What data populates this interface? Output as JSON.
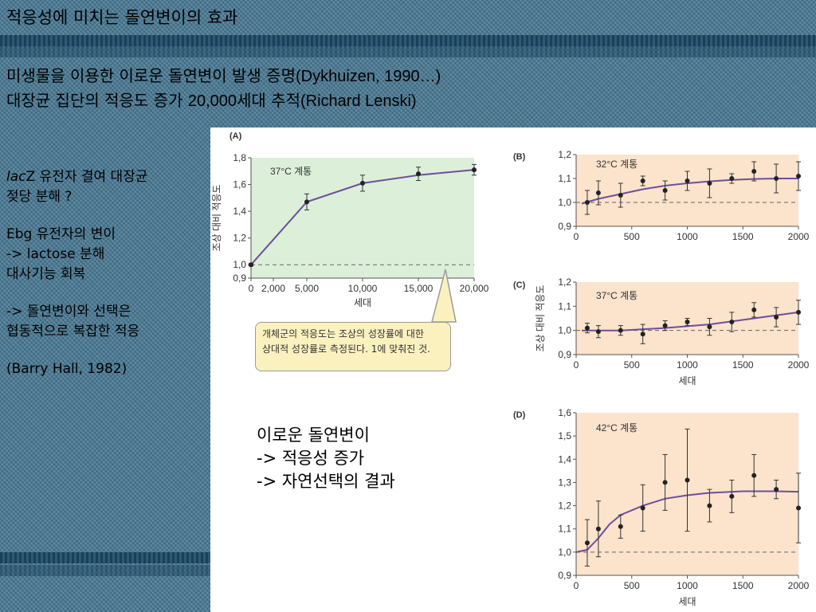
{
  "slide": {
    "title": "적응성에 미치는 돌연변이의 효과",
    "subtitle": [
      {
        "ko": "미생물을 이용한 이로운 돌연변이 발생 증명",
        "en": "(Dykhuizen, 1990…)"
      },
      {
        "ko": "대장균 집단의 적응도 증가 ",
        "en": "20,000",
        "ko2": "세대 추적",
        "en2": "(Richard Lenski)"
      }
    ],
    "left": {
      "p1_italic": "lac",
      "p1_line1_rest": "Z 유전자 결여 대장균",
      "p1_line2": "젖당 분해 ?",
      "p2_line1": "Ebg 유전자의 변이",
      "p2_line2": "-> lactose 분해",
      "p2_line3": "대사기능 회복",
      "p3_line1": "-> 돌연변이와 선택은",
      "p3_line2": "협동적으로 복잡한 적응",
      "p4": "(Barry Hall, 1982)"
    },
    "callout_line1": "개체군의 적응도는 조상의 성장률에 대한",
    "callout_line2": "상대적 성장률로 측정된다. 1에 맞춰진 것.",
    "note_line1": "이로운 돌연변이",
    "note_line2": "-> 적응성 증가",
    "note_line3": "-> 자연선택의 결과"
  },
  "colors": {
    "panelA_bg": "#dcefd9",
    "panelBCD_bg": "#fbe3cc",
    "curve": "#6e4f9a",
    "background": "#4d7e99"
  },
  "chart_data": [
    {
      "type": "line",
      "panel": "(A)",
      "label": "37°C 계통",
      "xlabel": "세대",
      "ylabel": "조상 대비 적응도",
      "xlim": [
        0,
        20000
      ],
      "ylim": [
        0.9,
        1.8
      ],
      "xticks": [
        "0",
        "2,000",
        "5,000",
        "10,000",
        "15,000",
        "20,000"
      ],
      "xtick_values": [
        0,
        2000,
        5000,
        10000,
        15000,
        20000
      ],
      "yticks": [
        "0,9",
        "1,0",
        "1,2",
        "1,4",
        "1,6",
        "1,8"
      ],
      "ytick_values": [
        0.9,
        1.0,
        1.2,
        1.4,
        1.6,
        1.8
      ],
      "points": [
        {
          "x": 0,
          "y": 1.0,
          "err": 0.01
        },
        {
          "x": 5000,
          "y": 1.47,
          "err": 0.06
        },
        {
          "x": 10000,
          "y": 1.61,
          "err": 0.06
        },
        {
          "x": 15000,
          "y": 1.68,
          "err": 0.05
        },
        {
          "x": 20000,
          "y": 1.71,
          "err": 0.04
        }
      ],
      "curve": [
        [
          0,
          1.0
        ],
        [
          5000,
          1.47
        ],
        [
          10000,
          1.61
        ],
        [
          15000,
          1.67
        ],
        [
          20000,
          1.71
        ]
      ],
      "baseline": 1.0
    },
    {
      "type": "line",
      "panel": "(B)",
      "label": "32°C 계통",
      "xlabel": "",
      "ylabel": "",
      "xlim": [
        0,
        2000
      ],
      "ylim": [
        0.9,
        1.2
      ],
      "xticks": [
        "0",
        "500",
        "1000",
        "1500",
        "2000"
      ],
      "xtick_values": [
        0,
        500,
        1000,
        1500,
        2000
      ],
      "yticks": [
        "0,9",
        "1,0",
        "1,1",
        "1,2"
      ],
      "ytick_values": [
        0.9,
        1.0,
        1.1,
        1.2
      ],
      "points": [
        {
          "x": 100,
          "y": 1.0,
          "err": 0.05
        },
        {
          "x": 200,
          "y": 1.04,
          "err": 0.05
        },
        {
          "x": 400,
          "y": 1.03,
          "err": 0.05
        },
        {
          "x": 600,
          "y": 1.09,
          "err": 0.02
        },
        {
          "x": 800,
          "y": 1.05,
          "err": 0.04
        },
        {
          "x": 1000,
          "y": 1.09,
          "err": 0.04
        },
        {
          "x": 1200,
          "y": 1.08,
          "err": 0.06
        },
        {
          "x": 1400,
          "y": 1.1,
          "err": 0.02
        },
        {
          "x": 1600,
          "y": 1.13,
          "err": 0.04
        },
        {
          "x": 1800,
          "y": 1.1,
          "err": 0.06
        },
        {
          "x": 2000,
          "y": 1.11,
          "err": 0.06
        }
      ],
      "curve": [
        [
          50,
          0.995
        ],
        [
          200,
          1.015
        ],
        [
          400,
          1.035
        ],
        [
          600,
          1.055
        ],
        [
          800,
          1.07
        ],
        [
          1000,
          1.08
        ],
        [
          1200,
          1.088
        ],
        [
          1400,
          1.094
        ],
        [
          1600,
          1.098
        ],
        [
          1800,
          1.1
        ],
        [
          2000,
          1.1
        ]
      ],
      "baseline": 1.0
    },
    {
      "type": "line",
      "panel": "(C)",
      "label": "37°C 계통",
      "xlabel": "세대",
      "ylabel": "조상 대비 적응도",
      "xlim": [
        0,
        2000
      ],
      "ylim": [
        0.9,
        1.2
      ],
      "xticks": [
        "0",
        "500",
        "1000",
        "1500",
        "2000"
      ],
      "xtick_values": [
        0,
        500,
        1000,
        1500,
        2000
      ],
      "yticks": [
        "0,9",
        "1,0",
        "1,1",
        "1,2"
      ],
      "ytick_values": [
        0.9,
        1.0,
        1.1,
        1.2
      ],
      "points": [
        {
          "x": 100,
          "y": 1.01,
          "err": 0.02
        },
        {
          "x": 200,
          "y": 0.995,
          "err": 0.025
        },
        {
          "x": 400,
          "y": 1.0,
          "err": 0.02
        },
        {
          "x": 600,
          "y": 0.985,
          "err": 0.04
        },
        {
          "x": 800,
          "y": 1.02,
          "err": 0.02
        },
        {
          "x": 1000,
          "y": 1.035,
          "err": 0.015
        },
        {
          "x": 1200,
          "y": 1.015,
          "err": 0.035
        },
        {
          "x": 1400,
          "y": 1.035,
          "err": 0.04
        },
        {
          "x": 1600,
          "y": 1.085,
          "err": 0.03
        },
        {
          "x": 1800,
          "y": 1.055,
          "err": 0.04
        },
        {
          "x": 2000,
          "y": 1.075,
          "err": 0.05
        }
      ],
      "curve": [
        [
          50,
          1.0
        ],
        [
          400,
          1.0
        ],
        [
          800,
          1.01
        ],
        [
          1200,
          1.025
        ],
        [
          1600,
          1.05
        ],
        [
          2000,
          1.075
        ]
      ],
      "baseline": 1.0
    },
    {
      "type": "line",
      "panel": "(D)",
      "label": "42°C 계통",
      "xlabel": "세대",
      "ylabel": "",
      "xlim": [
        0,
        2000
      ],
      "ylim": [
        0.9,
        1.6
      ],
      "xticks": [
        "0",
        "500",
        "1000",
        "1500",
        "2000"
      ],
      "xtick_values": [
        0,
        500,
        1000,
        1500,
        2000
      ],
      "yticks": [
        "0,9",
        "1,0",
        "1,1",
        "1,2",
        "1,3",
        "1,4",
        "1,5",
        "1,6"
      ],
      "ytick_values": [
        0.9,
        1.0,
        1.1,
        1.2,
        1.3,
        1.4,
        1.5,
        1.6
      ],
      "points": [
        {
          "x": 100,
          "y": 1.04,
          "err": 0.1
        },
        {
          "x": 200,
          "y": 1.1,
          "err": 0.12
        },
        {
          "x": 400,
          "y": 1.11,
          "err": 0.05
        },
        {
          "x": 600,
          "y": 1.19,
          "err": 0.1
        },
        {
          "x": 800,
          "y": 1.3,
          "err": 0.12
        },
        {
          "x": 1000,
          "y": 1.31,
          "err": 0.22
        },
        {
          "x": 1200,
          "y": 1.2,
          "err": 0.07
        },
        {
          "x": 1400,
          "y": 1.24,
          "err": 0.07
        },
        {
          "x": 1600,
          "y": 1.33,
          "err": 0.09
        },
        {
          "x": 1800,
          "y": 1.27,
          "err": 0.04
        },
        {
          "x": 2000,
          "y": 1.19,
          "err": 0.15
        }
      ],
      "curve": [
        [
          0,
          1.0
        ],
        [
          100,
          1.01
        ],
        [
          200,
          1.06
        ],
        [
          300,
          1.12
        ],
        [
          400,
          1.16
        ],
        [
          600,
          1.2
        ],
        [
          800,
          1.23
        ],
        [
          1000,
          1.245
        ],
        [
          1200,
          1.255
        ],
        [
          1500,
          1.262
        ],
        [
          1800,
          1.262
        ],
        [
          2000,
          1.26
        ]
      ],
      "baseline": 1.0
    }
  ]
}
